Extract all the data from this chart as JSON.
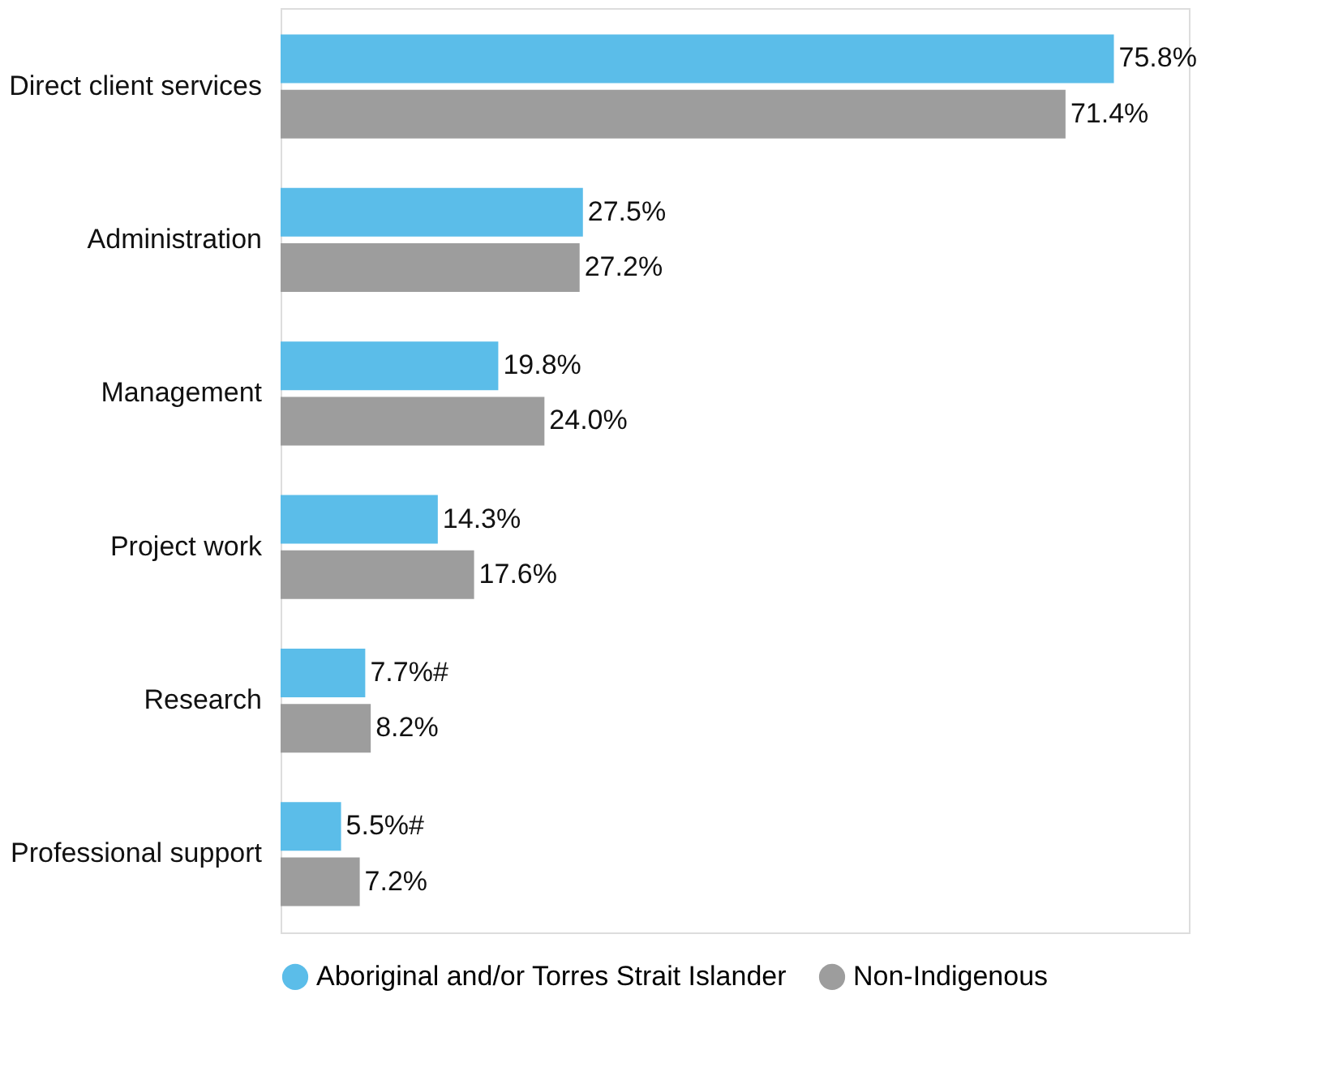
{
  "chart_data": {
    "type": "bar",
    "orientation": "horizontal",
    "legend": "bottom",
    "categories": [
      "Direct client services",
      "Administration",
      "Management",
      "Project work",
      "Research",
      "Professional support"
    ],
    "series": [
      {
        "name": "Aboriginal and/or Torres Strait Islander",
        "color": "#5bbde9",
        "values": [
          75.8,
          27.5,
          19.8,
          14.3,
          7.7,
          5.5
        ],
        "value_labels": [
          "75.8%",
          "27.5%",
          "19.8%",
          "14.3%",
          "7.7%#",
          "5.5%#"
        ]
      },
      {
        "name": "Non-Indigenous",
        "color": "#9d9d9d",
        "values": [
          71.4,
          27.2,
          24.0,
          17.6,
          8.2,
          7.2
        ],
        "value_labels": [
          "71.4%",
          "27.2%",
          "24.0%",
          "17.6%",
          "8.2%",
          "7.2%"
        ]
      }
    ]
  }
}
